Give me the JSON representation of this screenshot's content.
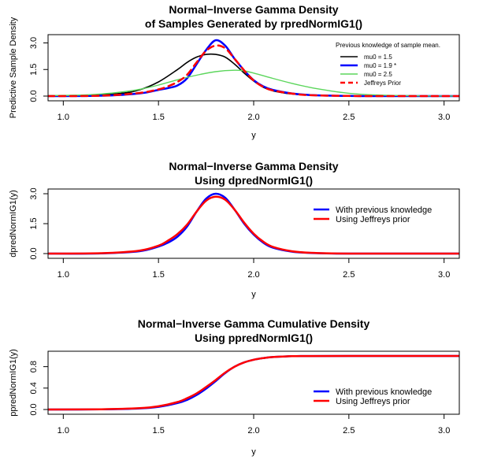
{
  "chart_data": [
    {
      "type": "line",
      "title": [
        "Normal−Inverse Gamma Density",
        "of Samples Generated by rpredNormIG1()"
      ],
      "xlabel": "y",
      "ylabel": "Predictive Sample Density",
      "xlim": [
        0.92,
        3.08
      ],
      "ylim": [
        0,
        3.2
      ],
      "xticks": [
        1.0,
        1.5,
        2.0,
        2.5,
        3.0
      ],
      "xtick_labels": [
        "1.0",
        "1.5",
        "2.0",
        "2.5",
        "3.0"
      ],
      "yticks": [
        0.0,
        1.5,
        3.0
      ],
      "ytick_labels": [
        "0.0",
        "1.5",
        "3.0"
      ],
      "legend": {
        "placement": "top-right",
        "title": "Previous knowledge of sample mean.",
        "entries": [
          "mu0 = 1.5",
          "mu0 = 1.9 *",
          "mu0 = 2.5",
          "Jeffreys Prior"
        ]
      },
      "series": [
        {
          "name": "mu0 = 1.5",
          "color": "#000000",
          "width": 1.6,
          "dash": "",
          "x": [
            0.92,
            1.1,
            1.3,
            1.4,
            1.5,
            1.6,
            1.65,
            1.7,
            1.75,
            1.8,
            1.85,
            1.9,
            1.95,
            2.0,
            2.05,
            2.1,
            2.2,
            2.3,
            2.5,
            2.7,
            3.08
          ],
          "y": [
            0.0,
            0.03,
            0.15,
            0.35,
            0.8,
            1.5,
            1.9,
            2.2,
            2.35,
            2.35,
            2.2,
            1.8,
            1.3,
            0.85,
            0.5,
            0.3,
            0.12,
            0.05,
            0.01,
            0.0,
            0.0
          ]
        },
        {
          "name": "mu0 = 1.9 *",
          "color": "#0000ff",
          "width": 2.5,
          "dash": "",
          "x": [
            0.92,
            1.2,
            1.4,
            1.5,
            1.55,
            1.6,
            1.65,
            1.7,
            1.75,
            1.8,
            1.85,
            1.9,
            1.95,
            2.0,
            2.05,
            2.1,
            2.2,
            2.3,
            2.5,
            2.7,
            3.08
          ],
          "y": [
            0.0,
            0.02,
            0.15,
            0.35,
            0.45,
            0.6,
            1.0,
            1.8,
            2.6,
            3.15,
            2.85,
            2.1,
            1.45,
            0.9,
            0.55,
            0.35,
            0.15,
            0.06,
            0.01,
            0.0,
            0.0
          ]
        },
        {
          "name": "mu0 = 2.5",
          "color": "#5cd65c",
          "width": 1.4,
          "dash": "",
          "x": [
            0.92,
            1.1,
            1.2,
            1.3,
            1.4,
            1.5,
            1.6,
            1.7,
            1.8,
            1.9,
            1.95,
            2.0,
            2.1,
            2.2,
            2.3,
            2.4,
            2.5,
            2.6,
            2.8,
            3.08
          ],
          "y": [
            0.02,
            0.06,
            0.12,
            0.22,
            0.38,
            0.62,
            0.92,
            1.18,
            1.38,
            1.46,
            1.42,
            1.3,
            1.0,
            0.72,
            0.48,
            0.3,
            0.16,
            0.08,
            0.02,
            0.0
          ]
        },
        {
          "name": "Jeffreys Prior",
          "color": "#ff0000",
          "width": 2.5,
          "dash": "8,6",
          "x": [
            0.92,
            1.2,
            1.4,
            1.5,
            1.55,
            1.6,
            1.65,
            1.7,
            1.75,
            1.8,
            1.85,
            1.9,
            1.95,
            2.0,
            2.05,
            2.1,
            2.2,
            2.3,
            2.5,
            2.7,
            3.08
          ],
          "y": [
            0.0,
            0.02,
            0.18,
            0.38,
            0.55,
            0.8,
            1.2,
            1.9,
            2.55,
            2.85,
            2.7,
            2.1,
            1.45,
            0.88,
            0.52,
            0.32,
            0.14,
            0.05,
            0.01,
            0.0,
            0.0
          ]
        }
      ]
    },
    {
      "type": "line",
      "title": [
        "Normal−Inverse Gamma Density",
        "Using dpredNormIG1()"
      ],
      "xlabel": "y",
      "ylabel": "dpredNormIG1(y)",
      "xlim": [
        0.92,
        3.08
      ],
      "ylim": [
        0,
        3.0
      ],
      "xticks": [
        1.0,
        1.5,
        2.0,
        2.5,
        3.0
      ],
      "xtick_labels": [
        "1.0",
        "1.5",
        "2.0",
        "2.5",
        "3.0"
      ],
      "yticks": [
        0.0,
        1.5,
        3.0
      ],
      "ytick_labels": [
        "0.0",
        "1.5",
        "3.0"
      ],
      "legend": {
        "placement": "top-right",
        "entries": [
          "With previous knowledge",
          "Using Jeffreys prior"
        ]
      },
      "series": [
        {
          "name": "With previous knowledge",
          "color": "#0000ff",
          "width": 2.5,
          "dash": "",
          "x": [
            0.92,
            1.2,
            1.4,
            1.5,
            1.55,
            1.6,
            1.65,
            1.7,
            1.75,
            1.8,
            1.85,
            1.9,
            1.95,
            2.0,
            2.05,
            2.1,
            2.2,
            2.3,
            2.5,
            2.8,
            3.08
          ],
          "y": [
            0.0,
            0.01,
            0.12,
            0.35,
            0.55,
            0.85,
            1.35,
            2.1,
            2.75,
            3.0,
            2.8,
            2.2,
            1.5,
            0.95,
            0.55,
            0.3,
            0.1,
            0.03,
            0.0,
            0.0,
            0.0
          ]
        },
        {
          "name": "Using Jeffreys prior",
          "color": "#ff0000",
          "width": 2.5,
          "dash": "",
          "x": [
            0.92,
            1.2,
            1.4,
            1.5,
            1.55,
            1.6,
            1.65,
            1.7,
            1.75,
            1.8,
            1.85,
            1.9,
            1.95,
            2.0,
            2.05,
            2.1,
            2.2,
            2.3,
            2.5,
            2.8,
            3.08
          ],
          "y": [
            0.0,
            0.02,
            0.15,
            0.4,
            0.65,
            0.98,
            1.45,
            2.1,
            2.65,
            2.85,
            2.7,
            2.2,
            1.55,
            1.0,
            0.6,
            0.34,
            0.12,
            0.04,
            0.0,
            0.0,
            0.0
          ]
        }
      ]
    },
    {
      "type": "line",
      "title": [
        "Normal−Inverse Gamma Cumulative Density",
        "Using ppredNormIG1()"
      ],
      "xlabel": "y",
      "ylabel": "ppredNormIG1(y)",
      "xlim": [
        0.92,
        3.08
      ],
      "ylim": [
        0,
        1.0
      ],
      "xticks": [
        1.0,
        1.5,
        2.0,
        2.5,
        3.0
      ],
      "xtick_labels": [
        "1.0",
        "1.5",
        "2.0",
        "2.5",
        "3.0"
      ],
      "yticks": [
        0.0,
        0.4,
        0.8
      ],
      "ytick_labels": [
        "0.0",
        "0.4",
        "0.8"
      ],
      "legend": {
        "placement": "bottom-right",
        "entries": [
          "With previous knowledge",
          "Using Jeffreys prior"
        ]
      },
      "series": [
        {
          "name": "With previous knowledge",
          "color": "#0000ff",
          "width": 2.5,
          "dash": "",
          "x": [
            0.92,
            1.2,
            1.4,
            1.5,
            1.6,
            1.65,
            1.7,
            1.75,
            1.8,
            1.85,
            1.9,
            1.95,
            2.0,
            2.05,
            2.1,
            2.2,
            2.3,
            2.5,
            2.8,
            3.08
          ],
          "y": [
            0.0,
            0.003,
            0.02,
            0.05,
            0.12,
            0.18,
            0.27,
            0.39,
            0.53,
            0.68,
            0.8,
            0.88,
            0.93,
            0.96,
            0.98,
            0.995,
            0.999,
            1.0,
            1.0,
            1.0
          ]
        },
        {
          "name": "Using Jeffreys prior",
          "color": "#ff0000",
          "width": 2.5,
          "dash": "",
          "x": [
            0.92,
            1.2,
            1.4,
            1.5,
            1.6,
            1.65,
            1.7,
            1.75,
            1.8,
            1.85,
            1.9,
            1.95,
            2.0,
            2.05,
            2.1,
            2.2,
            2.3,
            2.5,
            2.8,
            3.08
          ],
          "y": [
            0.0,
            0.004,
            0.025,
            0.06,
            0.14,
            0.21,
            0.3,
            0.42,
            0.55,
            0.69,
            0.8,
            0.88,
            0.93,
            0.96,
            0.98,
            0.995,
            0.999,
            1.0,
            1.0,
            1.0
          ]
        }
      ]
    }
  ]
}
